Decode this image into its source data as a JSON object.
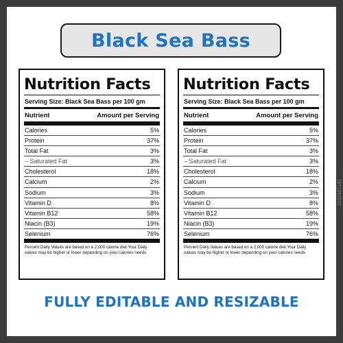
{
  "header": {
    "title": "Black Sea Bass"
  },
  "label": {
    "title": "Nutrition Facts",
    "serving": "Serving Size: Black Sea Bass per 100 gm",
    "col_nutrient": "Nutrient",
    "col_amount": "Amount per Serving",
    "rows": [
      {
        "name": "Calories",
        "value": "5%"
      },
      {
        "name": "Protein",
        "value": "37%"
      },
      {
        "name": "Total Fat",
        "value": "3%"
      },
      {
        "name": "– Saturated Fat",
        "value": "3%",
        "sub": true
      },
      {
        "name": "Cholesterol",
        "value": "18%"
      },
      {
        "name": "Calcium",
        "value": "2%"
      },
      {
        "name": "Sodium",
        "value": "3%"
      },
      {
        "name": "Vitamin D",
        "value": "8%"
      },
      {
        "name": "Vitamin B12",
        "value": "58%"
      },
      {
        "name": "Niacin (B3)",
        "value": "19%"
      },
      {
        "name": "Selenium",
        "value": "76%"
      }
    ],
    "footnote": "Percent Daily Values are based on a 2,000 calorie diet.Your Daily values may be higher or lower depending on your calories needs"
  },
  "footer": {
    "tagline": "FULLY EDITABLE AND RESIZABLE"
  },
  "watermark": {
    "id": "1622497142"
  },
  "colors": {
    "accent": "#1f73c4",
    "frame": "#3b3b3b",
    "title_bg": "#e6e6e6"
  }
}
